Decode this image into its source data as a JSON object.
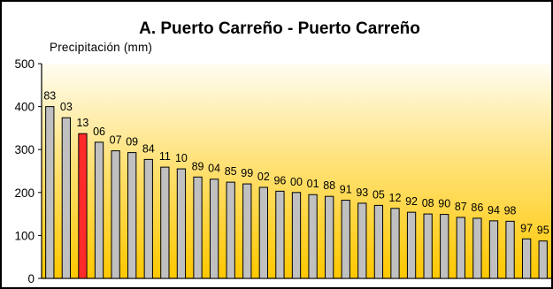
{
  "chart_data": {
    "type": "bar",
    "title": "A. Puerto Carreño - Puerto Carreño",
    "ylabel": "Precipitación (mm)",
    "xlabel": "",
    "ylim": [
      0,
      500
    ],
    "yticks": [
      0,
      100,
      200,
      300,
      400,
      500
    ],
    "grid": false,
    "categories": [
      "83",
      "03",
      "13",
      "06",
      "07",
      "09",
      "84",
      "11",
      "10",
      "89",
      "04",
      "85",
      "99",
      "02",
      "96",
      "00",
      "01",
      "88",
      "91",
      "93",
      "05",
      "12",
      "92",
      "08",
      "90",
      "87",
      "86",
      "94",
      "98",
      "97",
      "95"
    ],
    "values": [
      400,
      374,
      337,
      317,
      297,
      293,
      277,
      259,
      255,
      236,
      231,
      224,
      220,
      212,
      203,
      200,
      195,
      191,
      182,
      175,
      170,
      163,
      154,
      150,
      149,
      142,
      140,
      134,
      133,
      92,
      87
    ],
    "highlight_category": "13",
    "colors": {
      "bar": "#c0c0c0",
      "bar_highlight": "#ff2a2a",
      "plot_top": "#fffdf2",
      "plot_bottom": "#ffc800",
      "border": "#000000"
    }
  }
}
